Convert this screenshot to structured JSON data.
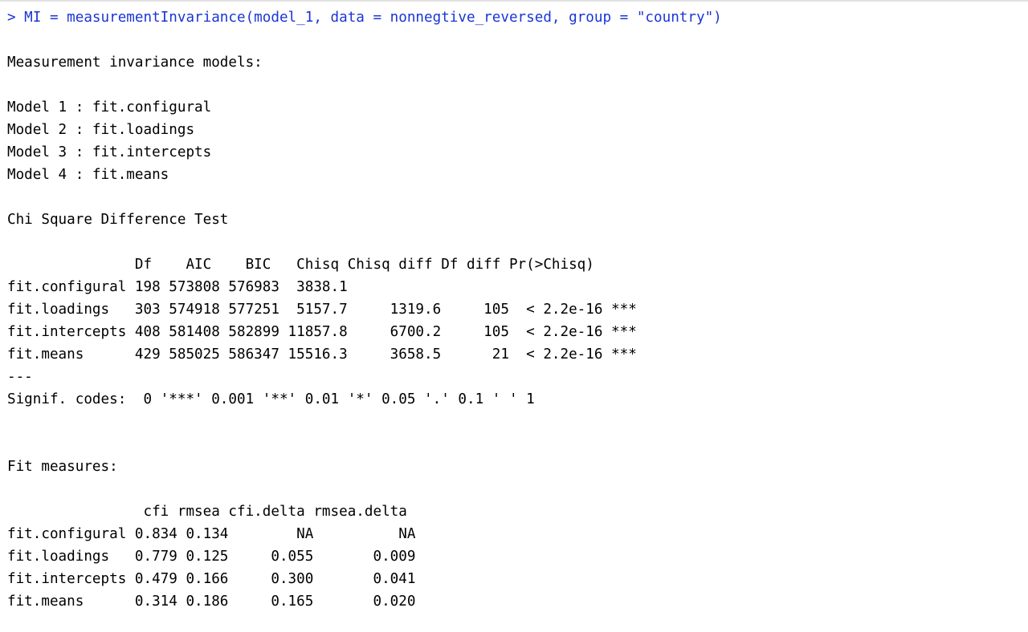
{
  "console": {
    "command": "> MI = measurementInvariance(model_1, data = nonnegtive_reversed, group = \"country\")",
    "command_color": "#1a35d6",
    "output_color": "#000000",
    "lines": [
      "",
      "Measurement invariance models:",
      "",
      "Model 1 : fit.configural",
      "Model 2 : fit.loadings",
      "Model 3 : fit.intercepts",
      "Model 4 : fit.means",
      "",
      "Chi Square Difference Test",
      "",
      "               Df    AIC    BIC   Chisq Chisq diff Df diff Pr(>Chisq)",
      "fit.configural 198 573808 576983  3838.1",
      "fit.loadings   303 574918 577251  5157.7     1319.6     105  < 2.2e-16 ***",
      "fit.intercepts 408 581408 582899 11857.8     6700.2     105  < 2.2e-16 ***",
      "fit.means      429 585025 586347 15516.3     3658.5      21  < 2.2e-16 ***",
      "---",
      "Signif. codes:  0 '***' 0.001 '**' 0.01 '*' 0.05 '.' 0.1 ' ' 1",
      "",
      "",
      "Fit measures:",
      "",
      "                cfi rmsea cfi.delta rmsea.delta",
      "fit.configural 0.834 0.134        NA          NA",
      "fit.loadings   0.779 0.125     0.055       0.009",
      "fit.intercepts 0.479 0.166     0.300       0.041",
      "fit.means      0.314 0.186     0.165       0.020"
    ]
  }
}
